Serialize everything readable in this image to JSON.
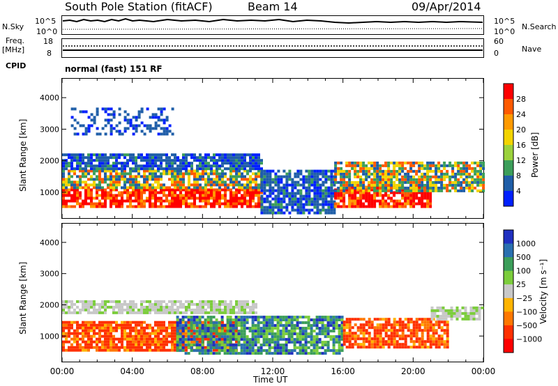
{
  "header": {
    "station": "South Pole Station (fitACF)",
    "beam": "Beam 14",
    "date": "09/Apr/2014"
  },
  "top_panels": {
    "nsky_label": "N.Sky",
    "nsky_ticks": [
      "10^5",
      "10^0"
    ],
    "nsearch_label": "N.Search",
    "nsearch_ticks": [
      "10^5",
      "10^0"
    ],
    "freq_label": "Freq.",
    "freq_unit": "[MHz]",
    "freq_ticks": [
      "18",
      "8"
    ],
    "nave_label": "Nave",
    "nave_ticks": [
      "60",
      "0"
    ],
    "cpid_label": "CPID",
    "cpid_text": "normal (fast) 151 RF"
  },
  "chart_data": [
    {
      "type": "heatmap",
      "name": "power",
      "ylabel": "Slant Range [km]",
      "yticks": [
        "4000",
        "3000",
        "2000",
        "1000"
      ],
      "ylim": [
        180,
        4600
      ],
      "xlim_hours": [
        0,
        24
      ],
      "colorbar": {
        "label": "Power [dB]",
        "ticks": [
          "28",
          "24",
          "20",
          "16",
          "12",
          "8",
          "4"
        ],
        "colors": [
          "#ff0000",
          "#ff5a00",
          "#ff9a00",
          "#f3d400",
          "#9bd23c",
          "#3c9e5a",
          "#1f5ea8",
          "#0020ff"
        ]
      },
      "bands": [
        {
          "h0": 0.0,
          "h1": 11.3,
          "r0": 500,
          "r1": 1100,
          "level": "high"
        },
        {
          "h0": 0.0,
          "h1": 11.3,
          "r0": 1100,
          "r1": 1700,
          "level": "mid"
        },
        {
          "h0": 0.0,
          "h1": 11.3,
          "r0": 1700,
          "r1": 2200,
          "level": "low"
        },
        {
          "h0": 0.5,
          "h1": 6.3,
          "r0": 2800,
          "r1": 3600,
          "level": "sparse"
        },
        {
          "h0": 11.3,
          "h1": 15.5,
          "r0": 300,
          "r1": 1700,
          "level": "low"
        },
        {
          "h0": 15.5,
          "h1": 21.0,
          "r0": 500,
          "r1": 1200,
          "level": "high"
        },
        {
          "h0": 15.5,
          "h1": 24.0,
          "r0": 1000,
          "r1": 1900,
          "level": "mid"
        }
      ]
    },
    {
      "type": "heatmap",
      "name": "velocity",
      "xlabel": "Time UT",
      "ylabel": "Slant Range [km]",
      "yticks": [
        "4000",
        "3000",
        "2000",
        "1000"
      ],
      "xticks": [
        "00:00",
        "04:00",
        "08:00",
        "12:00",
        "16:00",
        "20:00",
        "00:00"
      ],
      "ylim": [
        180,
        4600
      ],
      "xlim_hours": [
        0,
        24
      ],
      "colorbar": {
        "label": "Velocity [m s⁻¹]",
        "ticks": [
          "1000",
          "500",
          "100",
          "25",
          "−25",
          "−100",
          "−500",
          "−1000"
        ],
        "colors": [
          "#2030c0",
          "#2a70b0",
          "#3c9e5a",
          "#7ccd3c",
          "#c8c8c8",
          "#ffb400",
          "#ff7800",
          "#ff3000",
          "#ff0000"
        ]
      },
      "bands": [
        {
          "h0": 0.0,
          "h1": 10.0,
          "r0": 500,
          "r1": 1400,
          "level": "neg"
        },
        {
          "h0": 0.0,
          "h1": 11.0,
          "r0": 1700,
          "r1": 2100,
          "level": "gray"
        },
        {
          "h0": 6.5,
          "h1": 16.0,
          "r0": 400,
          "r1": 1600,
          "level": "pos"
        },
        {
          "h0": 16.0,
          "h1": 22.0,
          "r0": 600,
          "r1": 1500,
          "level": "neg"
        },
        {
          "h0": 21.0,
          "h1": 24.0,
          "r0": 1500,
          "r1": 1900,
          "level": "gray"
        }
      ]
    }
  ]
}
